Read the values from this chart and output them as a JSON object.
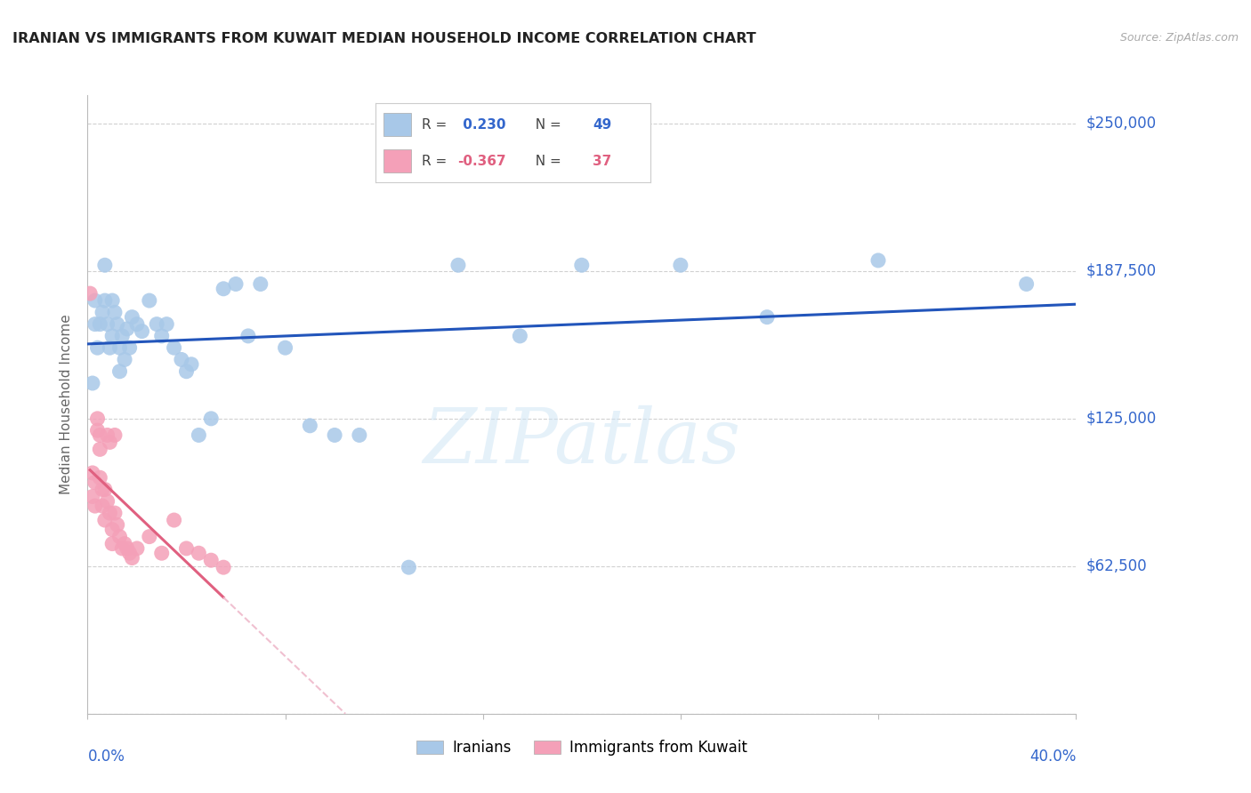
{
  "title": "IRANIAN VS IMMIGRANTS FROM KUWAIT MEDIAN HOUSEHOLD INCOME CORRELATION CHART",
  "source": "Source: ZipAtlas.com",
  "ylabel": "Median Household Income",
  "y_ticks": [
    0,
    62500,
    125000,
    187500,
    250000
  ],
  "y_tick_labels": [
    "",
    "$62,500",
    "$125,000",
    "$187,500",
    "$250,000"
  ],
  "x_range": [
    0.0,
    0.4
  ],
  "y_range": [
    0,
    262000
  ],
  "background_color": "#ffffff",
  "grid_color": "#cccccc",
  "iranians_color": "#a8c8e8",
  "kuwait_color": "#f4a0b8",
  "trend_iranian_color": "#2255bb",
  "trend_kuwait_solid_color": "#e06080",
  "trend_kuwait_dash_color": "#f0c0d0",
  "iranians_x": [
    0.002,
    0.003,
    0.003,
    0.004,
    0.005,
    0.006,
    0.007,
    0.007,
    0.008,
    0.009,
    0.01,
    0.01,
    0.011,
    0.012,
    0.013,
    0.013,
    0.014,
    0.015,
    0.016,
    0.017,
    0.018,
    0.02,
    0.022,
    0.025,
    0.028,
    0.03,
    0.032,
    0.035,
    0.038,
    0.04,
    0.042,
    0.045,
    0.05,
    0.055,
    0.06,
    0.065,
    0.07,
    0.08,
    0.09,
    0.1,
    0.11,
    0.13,
    0.15,
    0.175,
    0.2,
    0.24,
    0.275,
    0.32,
    0.38
  ],
  "iranians_y": [
    140000,
    175000,
    165000,
    155000,
    165000,
    170000,
    190000,
    175000,
    165000,
    155000,
    175000,
    160000,
    170000,
    165000,
    155000,
    145000,
    160000,
    150000,
    163000,
    155000,
    168000,
    165000,
    162000,
    175000,
    165000,
    160000,
    165000,
    155000,
    150000,
    145000,
    148000,
    118000,
    125000,
    180000,
    182000,
    160000,
    182000,
    155000,
    122000,
    118000,
    118000,
    62000,
    190000,
    160000,
    190000,
    190000,
    168000,
    192000,
    182000
  ],
  "kuwait_x": [
    0.001,
    0.002,
    0.002,
    0.003,
    0.003,
    0.004,
    0.004,
    0.005,
    0.005,
    0.005,
    0.006,
    0.006,
    0.007,
    0.007,
    0.008,
    0.008,
    0.009,
    0.009,
    0.01,
    0.01,
    0.011,
    0.011,
    0.012,
    0.013,
    0.014,
    0.015,
    0.016,
    0.017,
    0.018,
    0.02,
    0.025,
    0.03,
    0.035,
    0.04,
    0.045,
    0.05,
    0.055
  ],
  "kuwait_y": [
    178000,
    102000,
    92000,
    98000,
    88000,
    125000,
    120000,
    118000,
    112000,
    100000,
    95000,
    88000,
    95000,
    82000,
    90000,
    118000,
    115000,
    85000,
    78000,
    72000,
    118000,
    85000,
    80000,
    75000,
    70000,
    72000,
    70000,
    68000,
    66000,
    70000,
    75000,
    68000,
    82000,
    70000,
    68000,
    65000,
    62000
  ],
  "legend_R_iranian_label": "R = ",
  "legend_R_iranian_val": " 0.230",
  "legend_N_iranian_label": "  N = ",
  "legend_N_iranian_val": "49",
  "legend_R_kuwait_label": "R = ",
  "legend_R_kuwait_val": "-0.367",
  "legend_N_kuwait_label": "  N = ",
  "legend_N_kuwait_val": "37",
  "text_color_blue": "#3366cc",
  "text_color_pink": "#e06080",
  "text_color_dark": "#444444",
  "text_color_gray": "#999999"
}
